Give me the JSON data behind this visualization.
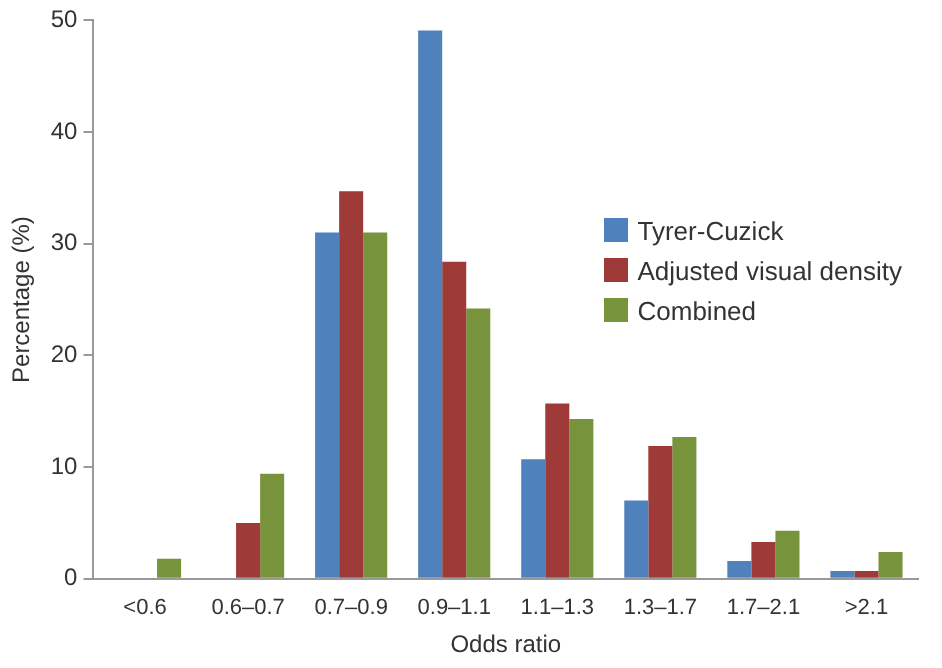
{
  "chart_data": {
    "type": "bar",
    "xlabel": "Odds ratio",
    "ylabel": "Percentage (%)",
    "categories": [
      "<0.6",
      "0.6–0.7",
      "0.7–0.9",
      "0.9–1.1",
      "1.1–1.3",
      "1.3–1.7",
      "1.7–2.1",
      ">2.1"
    ],
    "series": [
      {
        "name": "Tyrer-Cuzick",
        "color": "#4f81bd",
        "values": [
          0,
          0,
          31.0,
          49.1,
          10.7,
          7.0,
          1.6,
          0.7
        ]
      },
      {
        "name": "Adjusted visual density",
        "color": "#9e3a38",
        "values": [
          0.1,
          5.0,
          34.7,
          28.4,
          15.7,
          11.9,
          3.3,
          0.7
        ]
      },
      {
        "name": "Combined",
        "color": "#77933c",
        "values": [
          1.8,
          9.4,
          31.0,
          24.2,
          14.3,
          12.7,
          4.3,
          2.4
        ]
      }
    ],
    "ylim": [
      0,
      50
    ],
    "yticks": [
      0,
      10,
      20,
      30,
      40,
      50
    ],
    "grid": false,
    "legend": "right"
  }
}
